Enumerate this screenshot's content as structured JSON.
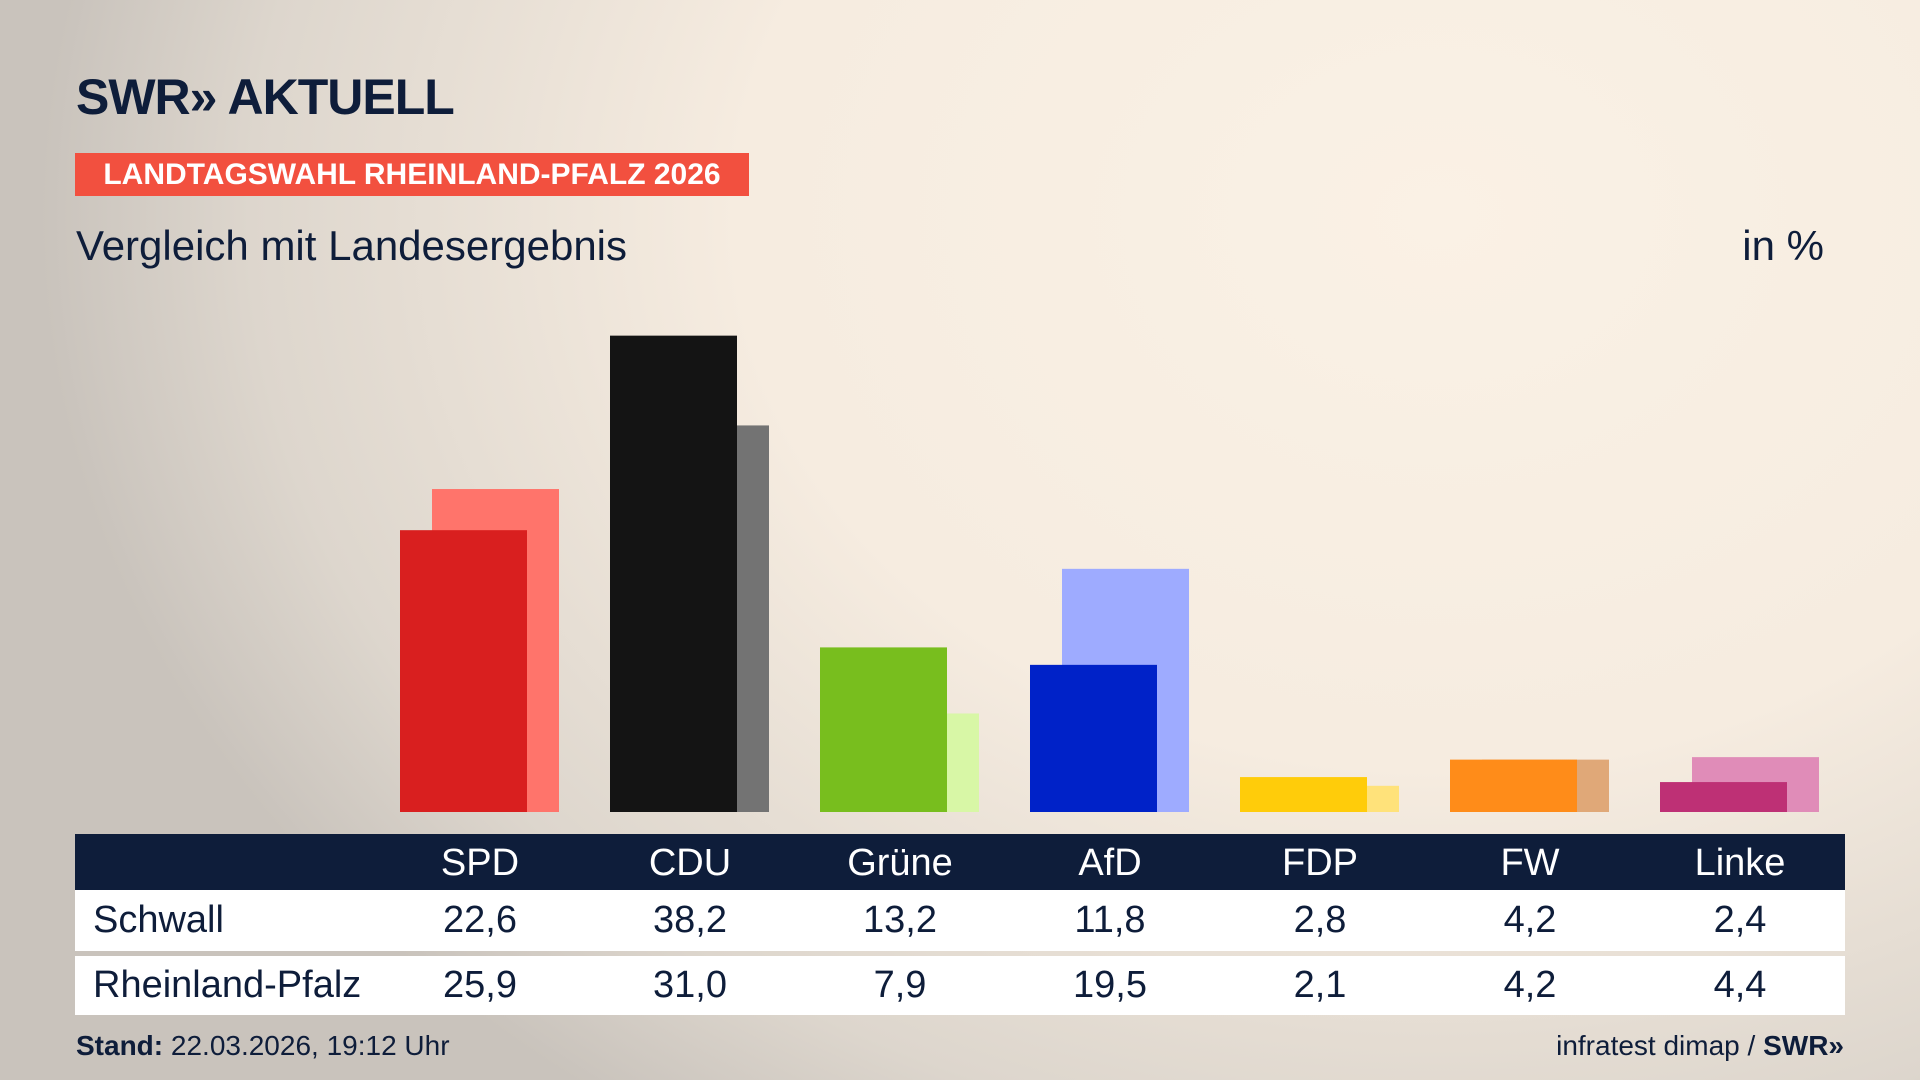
{
  "header": {
    "logo": "SWR» AKTUELL",
    "banner": "LANDTAGSWAHL RHEINLAND-PFALZ 2026",
    "subtitle": "Vergleich mit Landesergebnis",
    "unit": "in %"
  },
  "footer": {
    "stand_label": "Stand:",
    "stand_value": "22.03.2026, 19:12 Uhr",
    "source": "infratest dimap /",
    "source_logo": "SWR»"
  },
  "chart_data": {
    "type": "bar",
    "title": "Vergleich mit Landesergebnis",
    "ylabel": "in %",
    "ylim": [
      0,
      38.2
    ],
    "categories": [
      "SPD",
      "CDU",
      "Grüne",
      "AfD",
      "FDP",
      "FW",
      "Linke"
    ],
    "series": [
      {
        "name": "Schwall",
        "values": [
          22.6,
          38.2,
          13.2,
          11.8,
          2.8,
          4.2,
          2.4
        ],
        "labels": [
          "22,6",
          "38,2",
          "13,2",
          "11,8",
          "2,8",
          "4,2",
          "2,4"
        ],
        "colors": [
          "#d91f1f",
          "#141414",
          "#78be1e",
          "#0022c8",
          "#ffcc0a",
          "#ff8c19",
          "#be3075"
        ]
      },
      {
        "name": "Rheinland-Pfalz",
        "values": [
          25.9,
          31.0,
          7.9,
          19.5,
          2.1,
          4.2,
          4.4
        ],
        "labels": [
          "25,9",
          "31,0",
          "7,9",
          "19,5",
          "2,1",
          "4,2",
          "4,4"
        ],
        "colors": [
          "#ff746b",
          "#737373",
          "#d8f7a6",
          "#9eabff",
          "#ffe27a",
          "#e0a878",
          "#e08cb8"
        ]
      }
    ]
  }
}
